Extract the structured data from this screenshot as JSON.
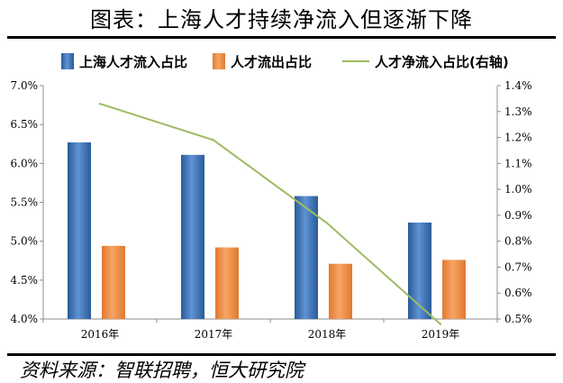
{
  "title": "图表：上海人才持续净流入但逐渐下降",
  "source": "资料来源：智联招聘，恒大研究院",
  "colors": {
    "bar_blue": "#3a6fb2",
    "bar_orange": "#ec8a44",
    "line_green": "#9dbb61"
  },
  "chart_data": {
    "type": "bar",
    "categories": [
      "2016年",
      "2017年",
      "2018年",
      "2019年"
    ],
    "series": [
      {
        "name": "上海人才流入占比",
        "type": "bar",
        "axis": "left",
        "values": [
          6.27,
          6.11,
          5.58,
          5.24
        ]
      },
      {
        "name": "人才流出占比",
        "type": "bar",
        "axis": "left",
        "values": [
          4.94,
          4.92,
          4.71,
          4.76
        ]
      },
      {
        "name": "人才净流入占比(右轴)",
        "type": "line",
        "axis": "right",
        "values": [
          1.33,
          1.19,
          0.87,
          0.48
        ]
      }
    ],
    "left_axis": {
      "min": 4.0,
      "max": 7.0,
      "step": 0.5,
      "tick_labels": [
        "4.0%",
        "4.5%",
        "5.0%",
        "5.5%",
        "6.0%",
        "6.5%",
        "7.0%"
      ]
    },
    "right_axis": {
      "min": 0.5,
      "max": 1.4,
      "step": 0.1,
      "tick_labels": [
        "0.5%",
        "0.6%",
        "0.7%",
        "0.8%",
        "0.9%",
        "1.0%",
        "1.1%",
        "1.2%",
        "1.3%",
        "1.4%"
      ]
    },
    "legend_position": "top",
    "grid": false
  }
}
